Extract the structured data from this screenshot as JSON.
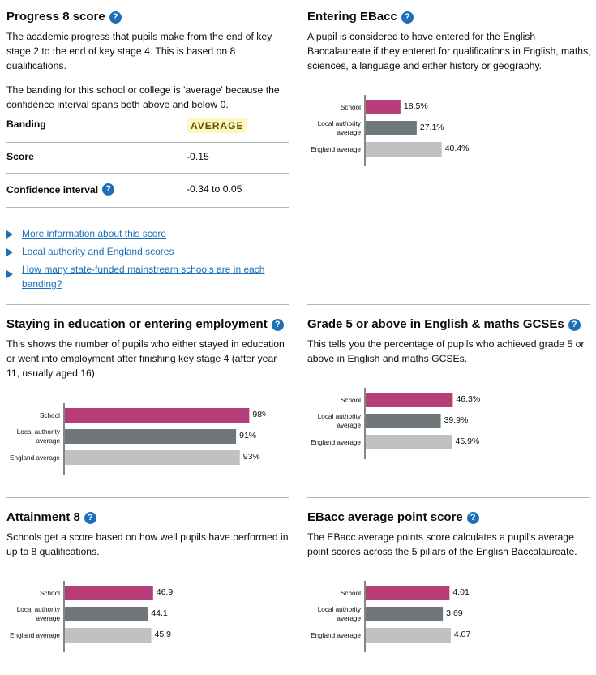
{
  "progress8": {
    "title": "Progress 8 score",
    "desc1": "The academic progress that pupils make from the end of key stage 2 to the end of key stage 4. This is based on 8 qualifications.",
    "desc2": "The banding for this school or college is 'average' because the confidence interval spans both above and below 0.",
    "banding_label": "Banding",
    "banding_value": "AVERAGE",
    "score_label": "Score",
    "score_value": "-0.15",
    "ci_label": "Confidence interval",
    "ci_value": "-0.34 to 0.05",
    "links": [
      "More information about this score",
      "Local authority and England scores",
      "How many state-funded mainstream schools are in each banding?"
    ]
  },
  "ebacc_entry": {
    "title": "Entering EBacc",
    "desc": "A pupil is considered to have entered for the English Baccalaureate if they entered for qualifications in English, maths, sciences, a language and either history or geography."
  },
  "staying": {
    "title": "Staying in education or entering employment",
    "desc": "This shows the number of pupils who either stayed in education or went into employment after finishing key stage 4 (after year 11, usually aged 16)."
  },
  "grade5": {
    "title": "Grade 5 or above in English & maths GCSEs",
    "desc": "This tells you the percentage of pupils who achieved grade 5 or above in English and maths GCSEs."
  },
  "attainment8": {
    "title": "Attainment 8",
    "desc": "Schools get a score based on how well pupils have performed in up to 8 qualifications."
  },
  "ebacc_aps": {
    "title": "EBacc average point score",
    "desc": "The EBacc average points score calculates a pupil's average point scores across the 5 pillars of the English Baccalaureate."
  },
  "colors": {
    "school": "#b73d79",
    "local_authority": "#6f777b",
    "england": "#bfc1c3",
    "link": "#1d70b8"
  },
  "chart_data": [
    {
      "id": "ebacc-entry-chart",
      "type": "bar",
      "orientation": "horizontal",
      "categories": [
        "School",
        "Local authority average",
        "England average"
      ],
      "category_lines": [
        [
          "School"
        ],
        [
          "Local authority",
          "average"
        ],
        [
          "England average"
        ]
      ],
      "values": [
        18.5,
        27.1,
        40.4
      ],
      "labels": [
        "18.5%",
        "27.1%",
        "40.4%"
      ],
      "xlim": [
        0,
        100
      ]
    },
    {
      "id": "staying-chart",
      "type": "bar",
      "orientation": "horizontal",
      "categories": [
        "School",
        "Local authority average",
        "England average"
      ],
      "category_lines": [
        [
          "School"
        ],
        [
          "Local authority",
          "average"
        ],
        [
          "England average"
        ]
      ],
      "values": [
        98,
        91,
        93
      ],
      "labels": [
        "98%",
        "91%",
        "93%"
      ],
      "xlim": [
        0,
        100
      ]
    },
    {
      "id": "grade5-chart",
      "type": "bar",
      "orientation": "horizontal",
      "categories": [
        "School",
        "Local authority average",
        "England average"
      ],
      "category_lines": [
        [
          "School"
        ],
        [
          "Local authority",
          "average"
        ],
        [
          "England average"
        ]
      ],
      "values": [
        46.3,
        39.9,
        45.9
      ],
      "labels": [
        "46.3%",
        "39.9%",
        "45.9%"
      ],
      "xlim": [
        0,
        100
      ]
    },
    {
      "id": "attainment8-chart",
      "type": "bar",
      "orientation": "horizontal",
      "categories": [
        "School",
        "Local authority average",
        "England average"
      ],
      "category_lines": [
        [
          "School"
        ],
        [
          "Local authority",
          "average"
        ],
        [
          "England average"
        ]
      ],
      "values": [
        46.9,
        44.1,
        45.9
      ],
      "labels": [
        "46.9",
        "44.1",
        "45.9"
      ],
      "xlim": [
        0,
        100
      ]
    },
    {
      "id": "ebacc-aps-chart",
      "type": "bar",
      "orientation": "horizontal",
      "categories": [
        "School",
        "Local authority average",
        "England average"
      ],
      "category_lines": [
        [
          "School"
        ],
        [
          "Local authority",
          "average"
        ],
        [
          "England average"
        ]
      ],
      "values": [
        4.01,
        3.69,
        4.07
      ],
      "labels": [
        "4.01",
        "3.69",
        "4.07"
      ],
      "xlim": [
        0,
        9
      ]
    }
  ]
}
